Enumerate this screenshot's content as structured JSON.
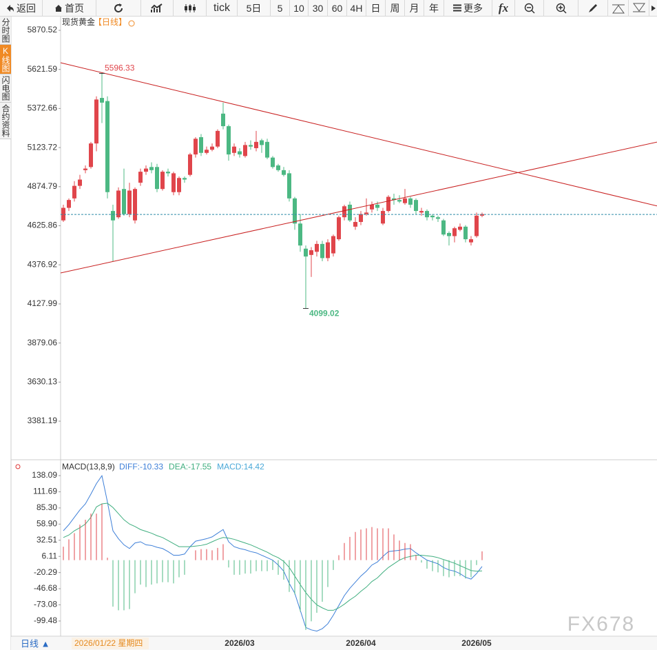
{
  "toolbar": [
    "返回",
    "首页",
    "tick",
    "5日",
    "5",
    "10",
    "30",
    "60",
    "4H",
    "日",
    "周",
    "月",
    "年",
    "更多",
    "fx"
  ],
  "sidebar": [
    "分时图",
    "K线图",
    "闪电图",
    "合约资料"
  ],
  "footer": {
    "period": "日线 ▲",
    "cursor_date": "2026/01/22 星期四"
  },
  "watermark": "FX678",
  "chart_data": [
    {
      "type": "candlestick",
      "title": "现货黄金",
      "subtitle": "【日线】",
      "up_color": "#e0454b",
      "down_color": "#4cb883",
      "categories": [
        null,
        null,
        null,
        null,
        null,
        null,
        null,
        null,
        null,
        null,
        null,
        null,
        null,
        null,
        null,
        null,
        null,
        null,
        null,
        null,
        null,
        null,
        null,
        null,
        null,
        null,
        null,
        null,
        null,
        null,
        null,
        null,
        "2026/03",
        null,
        null,
        null,
        null,
        null,
        null,
        null,
        null,
        null,
        null,
        null,
        null,
        null,
        null,
        null,
        null,
        null,
        null,
        null,
        null,
        null,
        "2026/04",
        null,
        null,
        null,
        null,
        null,
        null,
        null,
        null,
        null,
        null,
        null,
        null,
        null,
        null,
        null,
        null,
        null,
        null,
        null,
        null,
        "2026/05",
        null
      ],
      "open": [
        4660,
        4740,
        4800,
        4880,
        4980,
        5000,
        5150,
        5440,
        5420,
        4720,
        4680,
        4860,
        4700,
        4660,
        4900,
        4970,
        5000,
        5000,
        4860,
        4970,
        4840,
        4840,
        4930,
        4950,
        5080,
        5190,
        5090,
        5110,
        5130,
        5340,
        5260,
        5090,
        5100,
        5070,
        5140,
        5120,
        5170,
        5160,
        5060,
        5010,
        4980,
        4960,
        4800,
        4640,
        4480,
        4440,
        4460,
        4510,
        4420,
        4450,
        4540,
        4680,
        4760,
        4620,
        4650,
        4700,
        4730,
        4760,
        4640,
        4720,
        4800,
        4790,
        4770,
        4800,
        4790,
        4710,
        4720,
        4690,
        4680,
        4660,
        4580,
        4560,
        4600,
        4620,
        4520,
        4560,
        4690
      ],
      "high": [
        4760,
        4800,
        4910,
        4950,
        5010,
        5160,
        5450,
        5596.33,
        5450,
        4760,
        4870,
        4990,
        4900,
        4870,
        4990,
        5010,
        5030,
        5020,
        4980,
        4990,
        4970,
        4940,
        4940,
        5090,
        5190,
        5210,
        5130,
        5150,
        5240,
        5410,
        5270,
        5150,
        5120,
        5160,
        5170,
        5230,
        5180,
        5180,
        5070,
        5020,
        5000,
        4980,
        4810,
        4700,
        4500,
        4490,
        4530,
        4530,
        4540,
        4570,
        4690,
        4760,
        4780,
        4680,
        4720,
        4800,
        4780,
        4780,
        4740,
        4820,
        4830,
        4820,
        4860,
        4810,
        4800,
        4740,
        4730,
        4700,
        4690,
        4670,
        4590,
        4620,
        4640,
        4630,
        4560,
        4710,
        4710
      ],
      "low": [
        4650,
        4720,
        4780,
        4860,
        4960,
        4990,
        5100,
        5280,
        4800,
        4400,
        4670,
        4690,
        4680,
        4640,
        4880,
        4950,
        4960,
        4840,
        4850,
        4940,
        4820,
        4820,
        4900,
        4940,
        5060,
        5070,
        5080,
        5100,
        5120,
        5240,
        5040,
        5070,
        5060,
        5060,
        5110,
        5100,
        5090,
        5050,
        4990,
        4970,
        4940,
        4780,
        4600,
        4460,
        4099.02,
        4300,
        4430,
        4400,
        4400,
        4430,
        4530,
        4660,
        4650,
        4600,
        4630,
        4690,
        4710,
        4720,
        4630,
        4710,
        4760,
        4770,
        4760,
        4740,
        4700,
        4690,
        4660,
        4660,
        4650,
        4560,
        4500,
        4520,
        4590,
        4520,
        4500,
        4550,
        4680
      ],
      "close": [
        4740,
        4790,
        4880,
        4920,
        4990,
        5150,
        5430,
        5410,
        4840,
        4660,
        4850,
        4700,
        4850,
        4860,
        4970,
        4990,
        4980,
        4860,
        4970,
        4960,
        4960,
        4930,
        4920,
        5080,
        5180,
        5090,
        5110,
        5130,
        5230,
        5260,
        5080,
        5130,
        5080,
        5140,
        5130,
        5160,
        5140,
        5060,
        5000,
        4980,
        4950,
        4800,
        4640,
        4500,
        4430,
        4470,
        4510,
        4420,
        4520,
        4560,
        4680,
        4750,
        4660,
        4650,
        4700,
        4710,
        4760,
        4740,
        4720,
        4810,
        4790,
        4780,
        4800,
        4760,
        4720,
        4720,
        4680,
        4680,
        4670,
        4570,
        4560,
        4610,
        4620,
        4540,
        4540,
        4690,
        4700
      ],
      "max_label": "5596.33",
      "min_label": "4099.02",
      "current_price": 4698,
      "trendlines": [
        {
          "color": "#c81e1e",
          "x": [
            -0.5,
            107.75
          ],
          "y": [
            5664,
            4752
          ]
        },
        {
          "color": "#c81e1e",
          "x": [
            -0.5,
            107.75
          ],
          "y": [
            4325,
            5159
          ]
        }
      ],
      "ylim": [
        3144.3,
        5958.3
      ],
      "yticks": [
        5870.52,
        5621.59,
        5372.66,
        5123.72,
        4874.79,
        4625.86,
        4376.92,
        4127.99,
        3879.06,
        3630.13,
        3381.19
      ]
    },
    {
      "type": "macd",
      "title": "MACD(13,8,9)",
      "series": [
        {
          "name": "DIFF:-10.33",
          "color": "#3d7fd8",
          "values": [
            48,
            58,
            70,
            82,
            92,
            108,
            125,
            138,
            95,
            48,
            35,
            25,
            19,
            28,
            30,
            25,
            24,
            21,
            19,
            14,
            8,
            8,
            10,
            22,
            31,
            33,
            35,
            38,
            44,
            50,
            30,
            22,
            19,
            17,
            14,
            12,
            8,
            4,
            0,
            -8,
            -18,
            -38,
            -54,
            -82,
            -110,
            -114,
            -116,
            -112,
            -104,
            -90,
            -74,
            -58,
            -46,
            -36,
            -26,
            -18,
            -8,
            -3,
            6,
            14,
            15,
            16,
            18,
            19,
            12,
            6,
            0,
            -3,
            -6,
            -12,
            -16,
            -18,
            -22,
            -28,
            -31,
            -22,
            -10.33
          ]
        },
        {
          "name": "DEA:-17.55",
          "color": "#3fae7f",
          "values": [
            37,
            41,
            48,
            53,
            59,
            70,
            87,
            92,
            93,
            86,
            76,
            66,
            59,
            55,
            50,
            47,
            44,
            40,
            37,
            32,
            27,
            22,
            22,
            22,
            23,
            24,
            26,
            30,
            34,
            37,
            36,
            34,
            31,
            28,
            25,
            21,
            17,
            13,
            8,
            4,
            -2,
            -12,
            -26,
            -40,
            -53,
            -64,
            -73,
            -78,
            -82,
            -82,
            -78,
            -72,
            -65,
            -59,
            -51,
            -44,
            -35,
            -29,
            -20,
            -12,
            -6,
            0,
            4,
            6,
            8,
            8,
            7,
            6,
            4,
            1,
            -2,
            -5,
            -9,
            -13,
            -17,
            -18,
            -17.55
          ]
        },
        {
          "name": "MACD:14.42",
          "color": "#4aa8d8",
          "values": [
            22,
            34,
            44,
            58,
            66,
            76,
            76,
            92,
            4,
            -76,
            -82,
            -82,
            -80,
            -54,
            -40,
            -44,
            -40,
            -38,
            -36,
            -36,
            -38,
            -28,
            -24,
            0,
            16,
            18,
            18,
            16,
            20,
            26,
            -12,
            -24,
            -24,
            -22,
            -22,
            -18,
            -18,
            -18,
            -16,
            -24,
            -32,
            -52,
            -56,
            -84,
            -114,
            -100,
            -86,
            -68,
            -44,
            -16,
            8,
            28,
            38,
            46,
            50,
            52,
            54,
            52,
            52,
            52,
            42,
            32,
            28,
            26,
            8,
            -4,
            -14,
            -18,
            -20,
            -26,
            -28,
            -26,
            -26,
            -30,
            -28,
            -8,
            14.42
          ]
        }
      ],
      "ylim": [
        -123.2,
        162.9
      ],
      "yticks": [
        138.09,
        111.69,
        {
          "value": 85.3,
          "label": "85.30"
        },
        {
          "value": 58.9,
          "label": "58.90"
        },
        32.51,
        6.11,
        -20.29,
        -46.68,
        -73.08,
        -99.48
      ]
    }
  ]
}
